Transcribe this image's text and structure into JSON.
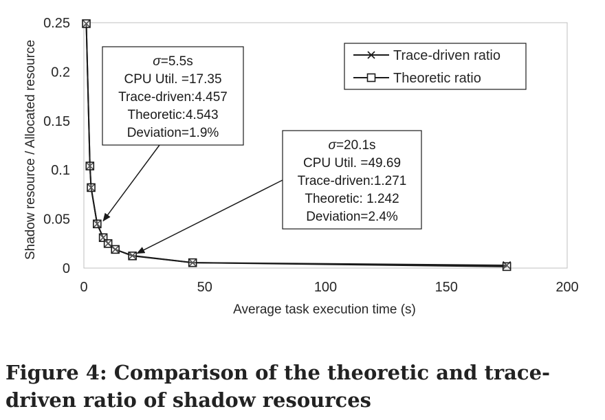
{
  "chart_data": {
    "type": "line",
    "xlabel": "Average task execution time (s)",
    "ylabel": "Shadow resource / Allocated resource",
    "xlim": [
      0,
      200
    ],
    "ylim": [
      0,
      0.25
    ],
    "xticks": [
      "0",
      "50",
      "100",
      "150",
      "200"
    ],
    "yticks": [
      "0",
      "0.05",
      "0.1",
      "0.15",
      "0.2",
      "0.25"
    ],
    "grid": false,
    "legend_position": "top-right",
    "series": [
      {
        "name": "Trace-driven ratio",
        "marker": "x",
        "x": [
          1,
          2.5,
          3,
          5.5,
          8,
          10,
          13,
          20.1,
          45,
          175
        ],
        "y": [
          0.249,
          0.104,
          0.082,
          0.045,
          0.031,
          0.025,
          0.019,
          0.0127,
          0.0055,
          0.0028
        ]
      },
      {
        "name": "Theoretic ratio",
        "marker": "square",
        "x": [
          1,
          2.5,
          3,
          5.5,
          8,
          10,
          13,
          20.1,
          45,
          175
        ],
        "y": [
          0.249,
          0.104,
          0.082,
          0.045,
          0.031,
          0.025,
          0.019,
          0.0124,
          0.0055,
          0.0015
        ]
      }
    ],
    "annotations": [
      {
        "lines": [
          "σ=5.5s",
          "CPU Util. =17.35",
          "Trace-driven:4.457",
          "Theoretic:4.543",
          "Deviation=1.9%"
        ],
        "target": [
          8,
          0.048
        ]
      },
      {
        "lines": [
          "σ=20.1s",
          "CPU Util. =49.69",
          "Trace-driven:1.271",
          "Theoretic: 1.242",
          "Deviation=2.4%"
        ],
        "target": [
          22,
          0.015
        ]
      }
    ]
  },
  "caption": "Figure 4: Comparison of the theoretic and trace-driven ratio of shadow resources"
}
